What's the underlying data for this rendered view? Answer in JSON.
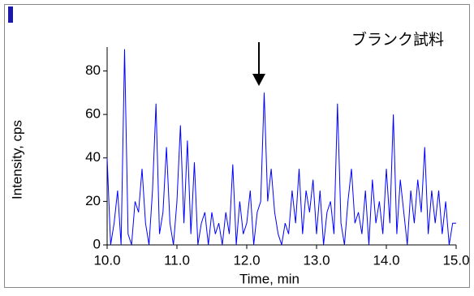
{
  "chart_data": {
    "type": "line",
    "annotation": "ブランク試料",
    "xlabel": "Time, min",
    "ylabel": "Intensity, cps",
    "xlim": [
      10,
      15
    ],
    "ylim": [
      0,
      91
    ],
    "xticks": [
      {
        "value": 10,
        "label": "10.0"
      },
      {
        "value": 11,
        "label": "11.0"
      },
      {
        "value": 12,
        "label": "12.0"
      },
      {
        "value": 13,
        "label": "13.0"
      },
      {
        "value": 14,
        "label": "14.0"
      },
      {
        "value": 15,
        "label": "15.0"
      }
    ],
    "yticks": [
      0,
      20,
      40,
      60,
      80
    ],
    "color": "#0000ff",
    "x": [
      10.0,
      10.05,
      10.1,
      10.15,
      10.2,
      10.25,
      10.3,
      10.35,
      10.4,
      10.45,
      10.5,
      10.55,
      10.6,
      10.65,
      10.7,
      10.75,
      10.8,
      10.85,
      10.9,
      10.95,
      11.0,
      11.05,
      11.1,
      11.15,
      11.2,
      11.25,
      11.3,
      11.35,
      11.4,
      11.45,
      11.5,
      11.55,
      11.6,
      11.65,
      11.7,
      11.75,
      11.8,
      11.85,
      11.9,
      11.95,
      12.0,
      12.05,
      12.1,
      12.15,
      12.2,
      12.25,
      12.3,
      12.35,
      12.4,
      12.45,
      12.5,
      12.55,
      12.6,
      12.65,
      12.7,
      12.75,
      12.8,
      12.85,
      12.9,
      12.95,
      13.0,
      13.05,
      13.1,
      13.15,
      13.2,
      13.25,
      13.3,
      13.35,
      13.4,
      13.45,
      13.5,
      13.55,
      13.6,
      13.65,
      13.7,
      13.75,
      13.8,
      13.85,
      13.9,
      13.95,
      14.0,
      14.05,
      14.1,
      14.15,
      14.2,
      14.25,
      14.3,
      14.35,
      14.4,
      14.45,
      14.5,
      14.55,
      14.6,
      14.65,
      14.7,
      14.75,
      14.8,
      14.85,
      14.9,
      14.95,
      15.0
    ],
    "values": [
      40,
      0,
      10,
      25,
      0,
      90,
      5,
      0,
      20,
      15,
      35,
      10,
      0,
      25,
      65,
      5,
      15,
      45,
      10,
      0,
      20,
      55,
      10,
      48,
      5,
      38,
      0,
      10,
      15,
      0,
      15,
      5,
      10,
      0,
      15,
      5,
      37,
      0,
      20,
      5,
      10,
      25,
      0,
      15,
      20,
      70,
      20,
      35,
      15,
      5,
      0,
      10,
      5,
      25,
      10,
      35,
      5,
      25,
      15,
      30,
      5,
      25,
      0,
      15,
      20,
      5,
      65,
      10,
      0,
      20,
      35,
      10,
      15,
      5,
      25,
      0,
      30,
      10,
      20,
      5,
      35,
      10,
      60,
      5,
      30,
      15,
      0,
      25,
      10,
      30,
      15,
      45,
      5,
      25,
      10,
      25,
      5,
      20,
      0,
      10,
      10
    ]
  }
}
